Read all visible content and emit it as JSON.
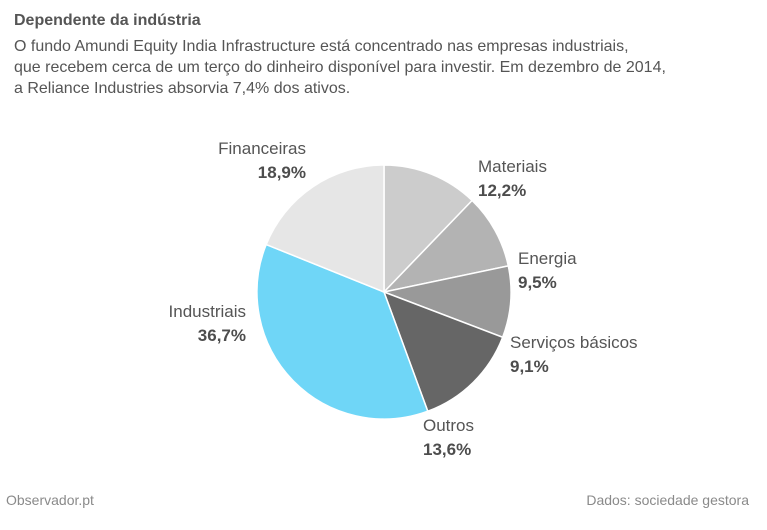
{
  "header": {
    "title": "Dependente da indústria",
    "subtitle_lines": [
      "O fundo Amundi Equity India Infrastructure está concentrado nas empresas industriais,",
      "que recebem cerca de um terço do dinheiro disponível para investir. Em dezembro de 2014,",
      "a Reliance Industries absorvia 7,4% dos ativos."
    ]
  },
  "footer": {
    "source_left": "Observador.pt",
    "source_right": "Dados: sociedade gestora"
  },
  "chart_data": {
    "type": "pie",
    "start_angle_deg": 0,
    "direction": "clockwise",
    "slices": [
      {
        "label": "Materiais",
        "value": 12.2,
        "display": "12,2%",
        "color": "#cccccc"
      },
      {
        "label": "Energia",
        "value": 9.5,
        "display": "9,5%",
        "color": "#b3b3b3"
      },
      {
        "label": "Serviços básicos",
        "value": 9.1,
        "display": "9,1%",
        "color": "#999999"
      },
      {
        "label": "Outros",
        "value": 13.6,
        "display": "13,6%",
        "color": "#666666"
      },
      {
        "label": "Industriais",
        "value": 36.7,
        "display": "36,7%",
        "color": "#6fd6f7"
      },
      {
        "label": "Financeiras",
        "value": 18.9,
        "display": "18,9%",
        "color": "#e6e6e6"
      }
    ]
  }
}
